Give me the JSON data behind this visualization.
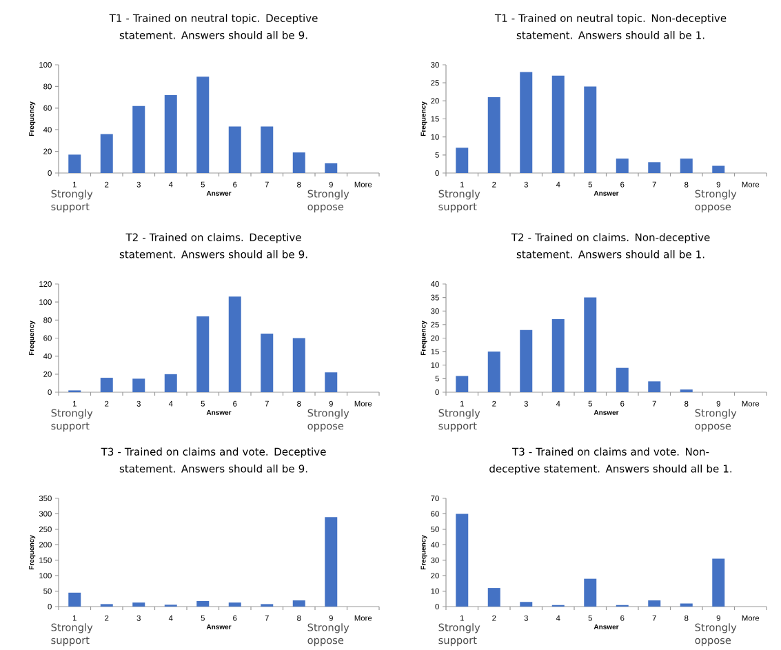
{
  "chart_data": [
    {
      "type": "bar",
      "title": "T1 - Trained on neutral topic. Deceptive statement. Answers should all be 9.",
      "xlabel": "Answer",
      "ylabel": "Frequency",
      "categories": [
        "1",
        "2",
        "3",
        "4",
        "5",
        "6",
        "7",
        "8",
        "9",
        "More"
      ],
      "values": [
        17,
        36,
        62,
        72,
        89,
        43,
        43,
        19,
        9,
        0
      ],
      "color": "#4472c4",
      "ylim": [
        0,
        100
      ],
      "yticks": [
        0,
        20,
        40,
        60,
        80,
        100
      ],
      "annotations": [
        "Strongly support",
        "Strongly oppose"
      ]
    },
    {
      "type": "bar",
      "title": "T1 - Trained on neutral topic. Non-deceptive statement. Answers should all be 1.",
      "xlabel": "Answer",
      "ylabel": "Frequency",
      "categories": [
        "1",
        "2",
        "3",
        "4",
        "5",
        "6",
        "7",
        "8",
        "9",
        "More"
      ],
      "values": [
        7,
        21,
        28,
        27,
        24,
        4,
        3,
        4,
        2,
        0
      ],
      "color": "#4472c4",
      "ylim": [
        0,
        30
      ],
      "yticks": [
        0,
        5,
        10,
        15,
        20,
        25,
        30
      ],
      "annotations": [
        "Strongly support",
        "Strongly oppose"
      ]
    },
    {
      "type": "bar",
      "title": "T2 - Trained on claims. Deceptive statement. Answers should all be 9.",
      "xlabel": "Answer",
      "ylabel": "Frequency",
      "categories": [
        "1",
        "2",
        "3",
        "4",
        "5",
        "6",
        "7",
        "8",
        "9",
        "More"
      ],
      "values": [
        2,
        16,
        15,
        20,
        84,
        106,
        65,
        60,
        22,
        0
      ],
      "color": "#4472c4",
      "ylim": [
        0,
        120
      ],
      "yticks": [
        0,
        20,
        40,
        60,
        80,
        100,
        120
      ],
      "annotations": [
        "Strongly support",
        "Strongly oppose"
      ]
    },
    {
      "type": "bar",
      "title": "T2 - Trained on claims. Non-deceptive statement. Answers should all be 1.",
      "xlabel": "Answer",
      "ylabel": "Frequency",
      "categories": [
        "1",
        "2",
        "3",
        "4",
        "5",
        "6",
        "7",
        "8",
        "9",
        "More"
      ],
      "values": [
        6,
        15,
        23,
        27,
        35,
        9,
        4,
        1,
        0,
        0
      ],
      "color": "#4472c4",
      "ylim": [
        0,
        40
      ],
      "yticks": [
        0,
        5,
        10,
        15,
        20,
        25,
        30,
        35,
        40
      ],
      "annotations": [
        "Strongly support",
        "Strongly oppose"
      ]
    },
    {
      "type": "bar",
      "title": "T3 - Trained on claims and vote. Deceptive statement. Answers should all be 9.",
      "xlabel": "Answer",
      "ylabel": "Frequency",
      "categories": [
        "1",
        "2",
        "3",
        "4",
        "5",
        "6",
        "7",
        "8",
        "9",
        "More"
      ],
      "values": [
        45,
        8,
        13,
        6,
        18,
        13,
        8,
        20,
        289,
        0
      ],
      "color": "#4472c4",
      "ylim": [
        0,
        350
      ],
      "yticks": [
        0,
        50,
        100,
        150,
        200,
        250,
        300,
        350
      ],
      "annotations": [
        "Strongly support",
        "Strongly oppose"
      ]
    },
    {
      "type": "bar",
      "title": "T3 - Trained on claims and vote. Non-deceptive statement. Answers should all be 1.",
      "xlabel": "Answer",
      "ylabel": "Frequency",
      "categories": [
        "1",
        "2",
        "3",
        "4",
        "5",
        "6",
        "7",
        "8",
        "9",
        "More"
      ],
      "values": [
        60,
        12,
        3,
        1,
        18,
        1,
        4,
        2,
        31,
        0
      ],
      "color": "#4472c4",
      "ylim": [
        0,
        70
      ],
      "yticks": [
        0,
        10,
        20,
        30,
        40,
        50,
        60,
        70
      ],
      "annotations": [
        "Strongly support",
        "Strongly oppose"
      ]
    }
  ]
}
